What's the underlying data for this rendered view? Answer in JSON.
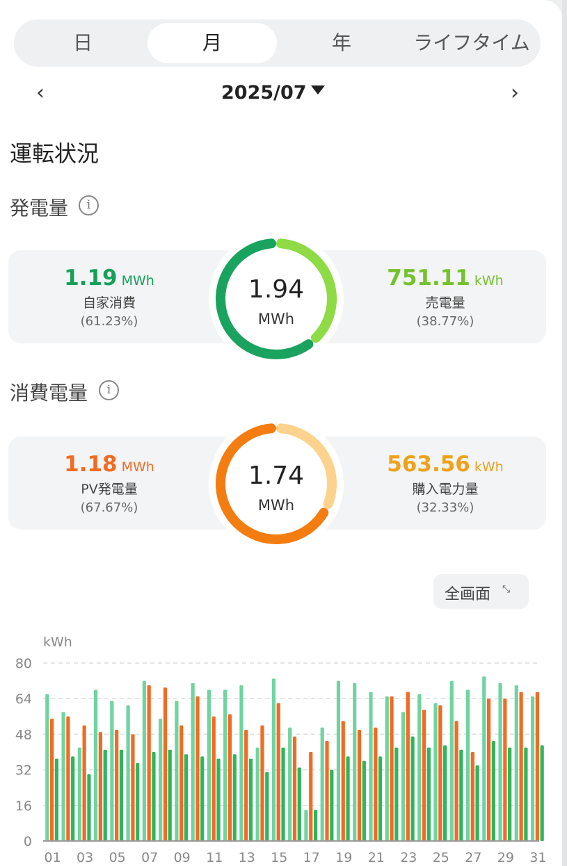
{
  "tabs": [
    {
      "label": "日"
    },
    {
      "label": "月"
    },
    {
      "label": "年"
    },
    {
      "label": "ライフタイム"
    }
  ],
  "active_tab": 1,
  "date_nav": {
    "prev_icon": "‹",
    "date": "2025/07",
    "next_icon": "›"
  },
  "section_title": "運転状況",
  "generation": {
    "title": "発電量",
    "total_value": "1.94",
    "total_unit": "MWh",
    "left": {
      "value": "1.19",
      "unit": "MWh",
      "label": "自家消費",
      "percent": "(61.23%)",
      "color": "#15a05a"
    },
    "right": {
      "value": "751.11",
      "unit": "kWh",
      "label": "売電量",
      "percent": "(38.77%)",
      "color": "#7cc832"
    },
    "ring_split": 0.6123,
    "ring_colors": [
      "#1aa35f",
      "#8edb45"
    ]
  },
  "consumption": {
    "title": "消費電量",
    "total_value": "1.74",
    "total_unit": "MWh",
    "left": {
      "value": "1.18",
      "unit": "MWh",
      "label": "PV発電量",
      "percent": "(67.67%)",
      "color": "#f26b22"
    },
    "right": {
      "value": "563.56",
      "unit": "kWh",
      "label": "購入電力量",
      "percent": "(32.33%)",
      "color": "#f1a21c"
    },
    "ring_split": 0.6767,
    "ring_colors": [
      "#f47d12",
      "#fcd28c"
    ]
  },
  "fullscreen_label": "全画面",
  "chart_data": {
    "type": "bar",
    "ylabel": "kWh",
    "ylim": [
      0,
      80
    ],
    "yticks": [
      0,
      16,
      32,
      48,
      64,
      80
    ],
    "categories": [
      "01",
      "02",
      "03",
      "04",
      "05",
      "06",
      "07",
      "08",
      "09",
      "10",
      "11",
      "12",
      "13",
      "14",
      "15",
      "16",
      "17",
      "18",
      "19",
      "20",
      "21",
      "22",
      "23",
      "24",
      "25",
      "26",
      "27",
      "28",
      "29",
      "30",
      "31"
    ],
    "xtick_labels": [
      "01",
      "03",
      "05",
      "07",
      "09",
      "11",
      "13",
      "15",
      "17",
      "19",
      "21",
      "23",
      "25",
      "27",
      "29",
      "31"
    ],
    "grid": true,
    "series": [
      {
        "color": "#6fd4a0",
        "values": [
          66,
          58,
          42,
          68,
          63,
          61,
          72,
          55,
          63,
          71,
          68,
          68,
          70,
          42,
          73,
          51,
          14,
          51,
          72,
          71,
          67,
          65,
          58,
          66,
          62,
          72,
          68,
          74,
          71,
          70,
          65
        ]
      },
      {
        "color": "#f46a20",
        "values": [
          55,
          56,
          52,
          49,
          50,
          48,
          70,
          69,
          52,
          65,
          56,
          57,
          50,
          52,
          62,
          47,
          40,
          45,
          54,
          50,
          51,
          65,
          67,
          59,
          61,
          54,
          40,
          64,
          64,
          67,
          67
        ]
      },
      {
        "color": "#2fb55c",
        "values": [
          37,
          38,
          30,
          41,
          41,
          35,
          40,
          41,
          39,
          38,
          37,
          39,
          37,
          31,
          42,
          33,
          14,
          32,
          38,
          36,
          38,
          42,
          47,
          42,
          43,
          41,
          34,
          45,
          42,
          42,
          43
        ]
      }
    ]
  }
}
